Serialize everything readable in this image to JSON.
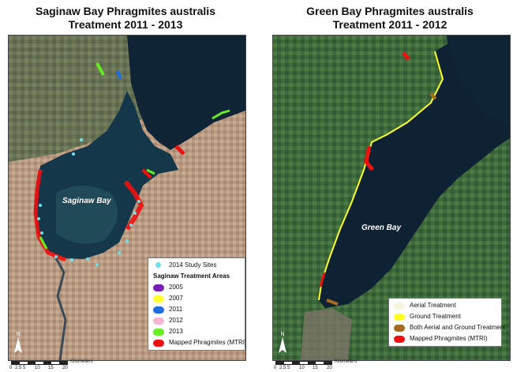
{
  "left_map": {
    "title_line1": "Saginaw Bay Phragmites australis",
    "title_line2": "Treatment 2011 - 2013",
    "bay_label": "Saginaw Bay",
    "legend": {
      "study_sites": "2014 Study Sites",
      "heading": "Saginaw Treatment Areas",
      "items": [
        {
          "label": "2005",
          "color": "#7a1fb5"
        },
        {
          "label": "2007",
          "color": "#ffff33"
        },
        {
          "label": "2011",
          "color": "#1f6fe0"
        },
        {
          "label": "2012",
          "color": "#f6b6d2"
        },
        {
          "label": "2013",
          "color": "#66ee22"
        },
        {
          "label": "Mapped Phragmites (MTRI)",
          "color": "#ee1111"
        }
      ]
    },
    "scale": {
      "ticks": [
        "0",
        "2.5",
        "5",
        "10",
        "15",
        "20"
      ],
      "unit": "Kilometers"
    }
  },
  "right_map": {
    "title_line1": "Green Bay Phragmites australis",
    "title_line2": "Treatment 2011 - 2012",
    "bay_label": "Green Bay",
    "legend": {
      "items": [
        {
          "label": "Aerial Treatment",
          "color": "#f5f5dc"
        },
        {
          "label": "Ground Treatment",
          "color": "#ffff22"
        },
        {
          "label": "Both Aerial and Ground Treatment",
          "color": "#a86a1c"
        },
        {
          "label": "Mapped Phragmites (MTRI)",
          "color": "#ee1111"
        }
      ]
    },
    "scale": {
      "ticks": [
        "0",
        "2.5",
        "5",
        "10",
        "15",
        "20"
      ],
      "unit": "Kilometers"
    }
  },
  "colors": {
    "water": "#0f2536",
    "land_left": "#b99a83",
    "land_right": "#3c6a3a",
    "study_site": "#6fe0e8"
  }
}
